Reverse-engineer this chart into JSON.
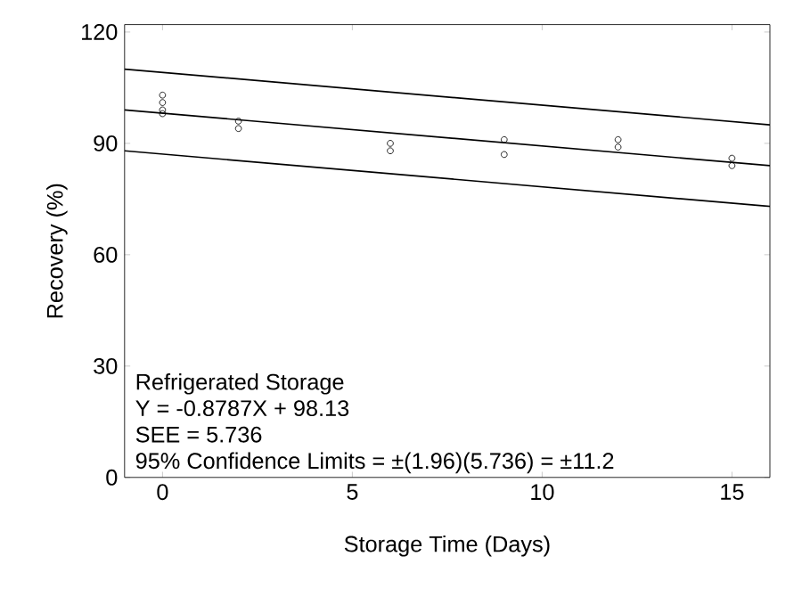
{
  "chart_data": {
    "type": "scatter",
    "xlabel": "Storage Time (Days)",
    "ylabel": "Recovery (%)",
    "xlim": [
      -1,
      16
    ],
    "ylim": [
      0,
      122
    ],
    "xticks": [
      0,
      5,
      10,
      15
    ],
    "yticks": [
      0,
      30,
      60,
      90,
      120
    ],
    "grid": false,
    "marker": "circle",
    "series": [
      {
        "color": "#000000",
        "x": [
          0,
          0,
          0,
          0,
          2,
          2,
          6,
          6,
          9,
          9,
          12,
          12,
          15,
          15
        ],
        "values": [
          103,
          101,
          99,
          98,
          96,
          94,
          90,
          88,
          91,
          87,
          91,
          89,
          86,
          84
        ]
      },
      {
        "type": "line",
        "color": "#000000",
        "marker": "none",
        "line_style": "solid",
        "x": [
          -1,
          16
        ],
        "values": [
          99,
          84
        ]
      },
      {
        "type": "line",
        "color": "#000000",
        "marker": "none",
        "line_style": "solid",
        "x": [
          -1,
          16
        ],
        "values": [
          110,
          95
        ]
      },
      {
        "type": "line",
        "color": "#000000",
        "marker": "none",
        "line_style": "solid",
        "x": [
          -1,
          16
        ],
        "values": [
          88,
          73
        ]
      }
    ],
    "annotations": [
      "Refrigerated Storage",
      "Y = -0.8787X + 98.13",
      "SEE = 5.736",
      "95% Confidence Limits = ±(1.96)(5.736) = ±11.2"
    ]
  }
}
